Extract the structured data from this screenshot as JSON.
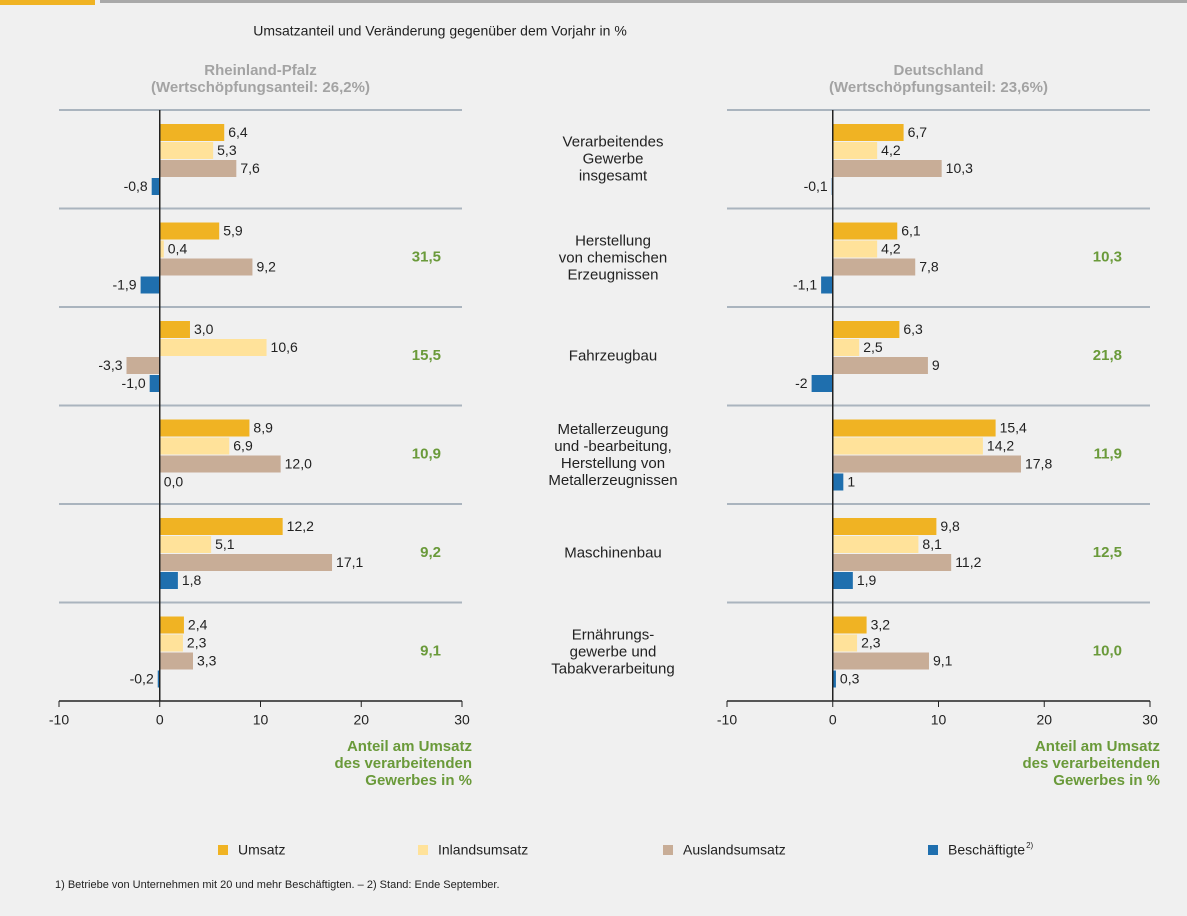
{
  "title": "Umsatzanteil und Veränderung gegenüber dem Vorjahr in %",
  "categories": [
    "Verarbeitendes\nGewerbe\ninsgesamt",
    "Herstellung\nvon chemischen\nErzeugnissen",
    "Fahrzeugbau",
    "Metallerzeugung\nund -bearbeitung,\nHerstellung von\nMetallerzeugnissen",
    "Maschinenbau",
    "Ernährungs-\ngewerbe und\nTabakverarbeitung"
  ],
  "footnote": "1) Betriebe von Unternehmen mit 20 und mehr Beschäftigten. – 2) Stand: Ende September.",
  "chart_data": [
    {
      "type": "bar",
      "orientation": "horizontal",
      "subtitle": "Rheinland-Pfalz\n(Wertschöpfungsanteil: 26,2%)",
      "xlim": [
        -10,
        30
      ],
      "xticks": [
        -10,
        0,
        10,
        20,
        30
      ],
      "xlabel": "Anteil am Umsatz\ndes verarbeitenden\nGewerbes in %",
      "shares": [
        null,
        31.5,
        15.5,
        10.9,
        9.2,
        9.1
      ],
      "share_labels": [
        null,
        "31,5",
        "15,5",
        "10,9",
        "9,2",
        "9,1"
      ],
      "series": [
        {
          "name": "Umsatz",
          "color": "#f0b323",
          "values": [
            6.4,
            5.9,
            3.0,
            8.9,
            12.2,
            2.4
          ],
          "value_labels": [
            "6,4",
            "5,9",
            "3,0",
            "8,9",
            "12,2",
            "2,4"
          ]
        },
        {
          "name": "Inlandsumsatz",
          "color": "#ffe29a",
          "values": [
            5.3,
            0.4,
            10.6,
            6.9,
            5.1,
            2.3
          ],
          "value_labels": [
            "5,3",
            "0,4",
            "10,6",
            "6,9",
            "5,1",
            "2,3"
          ]
        },
        {
          "name": "Auslandsumsatz",
          "color": "#c8ad97",
          "values": [
            7.6,
            9.2,
            -3.3,
            12.0,
            17.1,
            3.3
          ],
          "value_labels": [
            "7,6",
            "9,2",
            "-3,3",
            "12,0",
            "17,1",
            "3,3"
          ]
        },
        {
          "name": "Beschäftigte",
          "note": "2)",
          "color": "#1f6fae",
          "values": [
            -0.8,
            -1.9,
            -1.0,
            0.0,
            1.8,
            -0.2
          ],
          "value_labels": [
            "-0,8",
            "-1,9",
            "-1,0",
            "0,0",
            "1,8",
            "-0,2"
          ]
        }
      ]
    },
    {
      "type": "bar",
      "orientation": "horizontal",
      "subtitle": "Deutschland\n(Wertschöpfungsanteil: 23,6%)",
      "xlim": [
        -10,
        30
      ],
      "xticks": [
        -10,
        0,
        10,
        20,
        30
      ],
      "xlabel": "Anteil am Umsatz\ndes verarbeitenden\nGewerbes in %",
      "shares": [
        null,
        10.3,
        21.8,
        11.9,
        12.5,
        10.0
      ],
      "share_labels": [
        null,
        "10,3",
        "21,8",
        "11,9",
        "12,5",
        "10,0"
      ],
      "series": [
        {
          "color": "#f0b323",
          "values": [
            6.7,
            6.1,
            6.3,
            15.4,
            9.8,
            3.2
          ],
          "value_labels": [
            "6,7",
            "6,1",
            "6,3",
            "15,4",
            "9,8",
            "3,2"
          ]
        },
        {
          "color": "#ffe29a",
          "values": [
            4.2,
            4.2,
            2.5,
            14.2,
            8.1,
            2.3
          ],
          "value_labels": [
            "4,2",
            "4,2",
            "2,5",
            "14,2",
            "8,1",
            "2,3"
          ]
        },
        {
          "color": "#c8ad97",
          "values": [
            10.3,
            7.8,
            9,
            17.8,
            11.2,
            9.1
          ],
          "value_labels": [
            "10,3",
            "7,8",
            "9",
            "17,8",
            "11,2",
            "9,1"
          ]
        },
        {
          "color": "#1f6fae",
          "values": [
            -0.1,
            -1.1,
            -2,
            1,
            1.9,
            0.3
          ],
          "value_labels": [
            "-0,1",
            "-1,1",
            "-2",
            "1",
            "1,9",
            "0,3"
          ]
        }
      ]
    }
  ]
}
